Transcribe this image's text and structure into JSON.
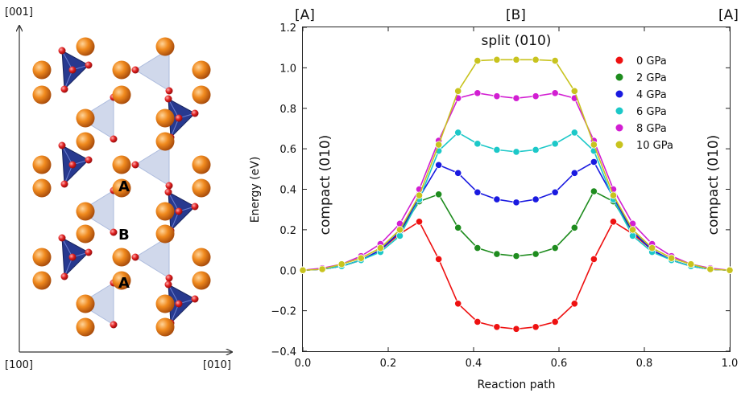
{
  "crystal_panel": {
    "axis_vertical": "[001]",
    "axis_left": "[100]",
    "axis_right": "[010]",
    "site_labels": [
      "A",
      "B",
      "A"
    ],
    "colors": {
      "atom_orange": "#f08a1e",
      "atom_red": "#e02020",
      "tetra_dark": "#1c2f8a",
      "tetra_light": "#c8d2e8"
    }
  },
  "chart_data": {
    "type": "line",
    "xlabel": "Reaction path",
    "ylabel": "Energy (eV)",
    "xlim": [
      0.0,
      1.0
    ],
    "ylim": [
      -0.4,
      1.2
    ],
    "xticks": [
      "0.0",
      "0.2",
      "0.4",
      "0.6",
      "0.8",
      "1.0"
    ],
    "yticks": [
      "−0.4",
      "−0.2",
      "0.0",
      "0.2",
      "0.4",
      "0.6",
      "0.8",
      "1.0",
      "1.2"
    ],
    "top_labels": [
      "[A]",
      "[B]",
      "[A]"
    ],
    "annotations": {
      "top": "split (010)",
      "left": "compact (010)",
      "right": "compact (010)"
    },
    "legend_position": "upper-right",
    "grid": false,
    "x": [
      0.0,
      0.0455,
      0.0909,
      0.1364,
      0.1818,
      0.2273,
      0.2727,
      0.3182,
      0.3636,
      0.4091,
      0.4545,
      0.5,
      0.5455,
      0.5909,
      0.6364,
      0.6818,
      0.7273,
      0.7727,
      0.8182,
      0.8636,
      0.9091,
      0.9545,
      1.0
    ],
    "series": [
      {
        "name": "0 GPa",
        "color": "#ee1111",
        "values": [
          0.0,
          0.005,
          0.02,
          0.05,
          0.1,
          0.18,
          0.24,
          0.055,
          -0.165,
          -0.255,
          -0.28,
          -0.29,
          -0.28,
          -0.255,
          -0.165,
          0.055,
          0.24,
          0.18,
          0.1,
          0.05,
          0.02,
          0.005,
          0.0
        ]
      },
      {
        "name": "2 GPa",
        "color": "#1e8c1e",
        "values": [
          0.0,
          0.005,
          0.02,
          0.05,
          0.1,
          0.19,
          0.34,
          0.375,
          0.21,
          0.11,
          0.08,
          0.07,
          0.08,
          0.11,
          0.21,
          0.39,
          0.34,
          0.19,
          0.1,
          0.05,
          0.02,
          0.005,
          0.0
        ]
      },
      {
        "name": "4 GPa",
        "color": "#1a1ae0",
        "values": [
          0.0,
          0.005,
          0.02,
          0.05,
          0.1,
          0.19,
          0.36,
          0.52,
          0.48,
          0.385,
          0.35,
          0.335,
          0.35,
          0.385,
          0.48,
          0.535,
          0.36,
          0.19,
          0.1,
          0.05,
          0.02,
          0.005,
          0.0
        ]
      },
      {
        "name": "6 GPa",
        "color": "#1cc8c8",
        "values": [
          0.0,
          0.005,
          0.02,
          0.05,
          0.09,
          0.17,
          0.35,
          0.59,
          0.68,
          0.625,
          0.595,
          0.585,
          0.595,
          0.625,
          0.68,
          0.59,
          0.35,
          0.17,
          0.09,
          0.05,
          0.02,
          0.005,
          0.0
        ]
      },
      {
        "name": "8 GPa",
        "color": "#d21ed2",
        "values": [
          0.0,
          0.01,
          0.03,
          0.07,
          0.13,
          0.23,
          0.4,
          0.64,
          0.85,
          0.875,
          0.86,
          0.85,
          0.86,
          0.875,
          0.85,
          0.64,
          0.4,
          0.23,
          0.13,
          0.07,
          0.03,
          0.01,
          0.0
        ]
      },
      {
        "name": "10 GPa",
        "color": "#c8c31e",
        "values": [
          0.0,
          0.005,
          0.03,
          0.06,
          0.11,
          0.2,
          0.37,
          0.62,
          0.885,
          1.035,
          1.04,
          1.04,
          1.04,
          1.035,
          0.885,
          0.62,
          0.37,
          0.2,
          0.11,
          0.06,
          0.03,
          0.005,
          0.0
        ]
      }
    ]
  }
}
